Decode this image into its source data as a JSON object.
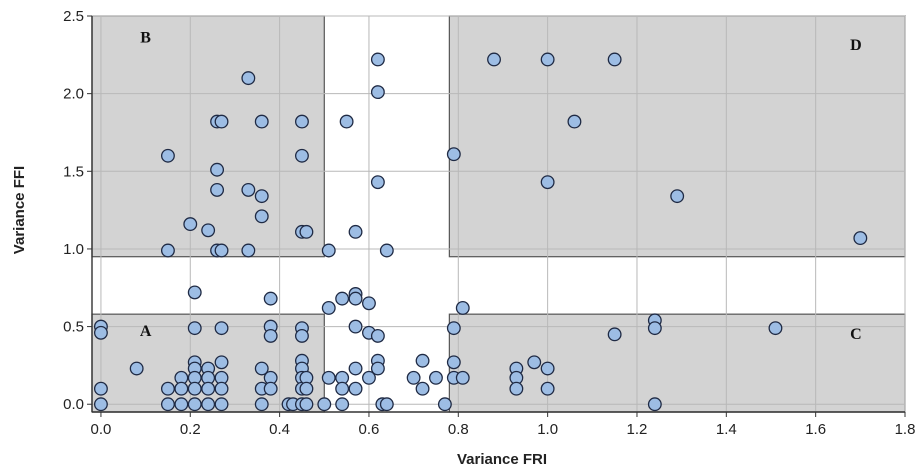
{
  "chart_data": {
    "type": "scatter",
    "xlabel": "Variance FRI",
    "ylabel": "Variance FFI",
    "xlim": [
      -0.02,
      1.8
    ],
    "ylim": [
      -0.05,
      2.5
    ],
    "xticks": [
      "0.0",
      "0.2",
      "0.4",
      "0.6",
      "0.8",
      "1.0",
      "1.2",
      "1.4",
      "1.6",
      "1.8"
    ],
    "yticks": [
      "0.0",
      "0.5",
      "1.0",
      "1.5",
      "2.0",
      "2.5"
    ],
    "grid": true,
    "colors": {
      "point_fill": "#9dbde4",
      "point_stroke": "#1f2a44",
      "region_fill": "#d3d3d3",
      "region_stroke": "#555555"
    },
    "regions": [
      {
        "label": "A",
        "x_range": [
          -0.02,
          0.5
        ],
        "y_range": [
          -0.05,
          0.58
        ],
        "label_at": [
          0.1,
          0.44
        ]
      },
      {
        "label": "B",
        "x_range": [
          -0.02,
          0.5
        ],
        "y_range": [
          0.95,
          2.5
        ],
        "label_at": [
          0.1,
          2.33
        ]
      },
      {
        "label": "C",
        "x_range": [
          0.78,
          1.8
        ],
        "y_range": [
          -0.05,
          0.58
        ],
        "label_at": [
          1.69,
          0.42
        ]
      },
      {
        "label": "D",
        "x_range": [
          0.78,
          1.8
        ],
        "y_range": [
          0.95,
          2.5
        ],
        "label_at": [
          1.69,
          2.28
        ]
      }
    ],
    "points": [
      [
        0.0,
        0.5
      ],
      [
        0.0,
        0.46
      ],
      [
        0.0,
        0.1
      ],
      [
        0.0,
        0.0
      ],
      [
        0.08,
        0.23
      ],
      [
        0.15,
        1.6
      ],
      [
        0.15,
        0.99
      ],
      [
        0.15,
        0.1
      ],
      [
        0.15,
        0.0
      ],
      [
        0.18,
        0.17
      ],
      [
        0.18,
        0.1
      ],
      [
        0.18,
        0.0
      ],
      [
        0.21,
        0.72
      ],
      [
        0.21,
        0.49
      ],
      [
        0.21,
        0.27
      ],
      [
        0.21,
        0.23
      ],
      [
        0.21,
        0.17
      ],
      [
        0.21,
        0.1
      ],
      [
        0.21,
        0.0
      ],
      [
        0.2,
        1.16
      ],
      [
        0.24,
        1.12
      ],
      [
        0.24,
        0.23
      ],
      [
        0.24,
        0.17
      ],
      [
        0.24,
        0.1
      ],
      [
        0.24,
        0.0
      ],
      [
        0.26,
        1.82
      ],
      [
        0.27,
        1.82
      ],
      [
        0.26,
        1.51
      ],
      [
        0.26,
        1.38
      ],
      [
        0.26,
        0.99
      ],
      [
        0.27,
        0.99
      ],
      [
        0.27,
        0.49
      ],
      [
        0.27,
        0.27
      ],
      [
        0.27,
        0.17
      ],
      [
        0.27,
        0.1
      ],
      [
        0.27,
        0.0
      ],
      [
        0.33,
        2.1
      ],
      [
        0.33,
        1.38
      ],
      [
        0.33,
        0.99
      ],
      [
        0.36,
        1.82
      ],
      [
        0.36,
        1.34
      ],
      [
        0.36,
        1.21
      ],
      [
        0.36,
        0.23
      ],
      [
        0.36,
        0.1
      ],
      [
        0.36,
        0.0
      ],
      [
        0.38,
        0.68
      ],
      [
        0.38,
        0.5
      ],
      [
        0.38,
        0.44
      ],
      [
        0.38,
        0.17
      ],
      [
        0.38,
        0.1
      ],
      [
        0.42,
        0.0
      ],
      [
        0.43,
        0.0
      ],
      [
        0.45,
        1.82
      ],
      [
        0.45,
        1.6
      ],
      [
        0.45,
        1.11
      ],
      [
        0.46,
        1.11
      ],
      [
        0.45,
        0.49
      ],
      [
        0.45,
        0.44
      ],
      [
        0.45,
        0.28
      ],
      [
        0.45,
        0.23
      ],
      [
        0.45,
        0.17
      ],
      [
        0.45,
        0.1
      ],
      [
        0.45,
        0.0
      ],
      [
        0.46,
        0.17
      ],
      [
        0.46,
        0.1
      ],
      [
        0.46,
        0.0
      ],
      [
        0.5,
        0.0
      ],
      [
        0.51,
        0.99
      ],
      [
        0.51,
        0.62
      ],
      [
        0.51,
        0.17
      ],
      [
        0.54,
        0.68
      ],
      [
        0.55,
        1.82
      ],
      [
        0.54,
        0.17
      ],
      [
        0.54,
        0.1
      ],
      [
        0.54,
        0.0
      ],
      [
        0.57,
        0.71
      ],
      [
        0.57,
        0.68
      ],
      [
        0.57,
        1.11
      ],
      [
        0.57,
        0.5
      ],
      [
        0.57,
        0.23
      ],
      [
        0.57,
        0.1
      ],
      [
        0.6,
        0.65
      ],
      [
        0.6,
        0.46
      ],
      [
        0.6,
        0.17
      ],
      [
        0.62,
        2.22
      ],
      [
        0.62,
        2.01
      ],
      [
        0.62,
        1.43
      ],
      [
        0.62,
        0.44
      ],
      [
        0.62,
        0.28
      ],
      [
        0.62,
        0.23
      ],
      [
        0.63,
        0.0
      ],
      [
        0.64,
        0.0
      ],
      [
        0.64,
        0.99
      ],
      [
        0.7,
        0.17
      ],
      [
        0.72,
        0.28
      ],
      [
        0.72,
        0.1
      ],
      [
        0.75,
        0.17
      ],
      [
        0.77,
        0.0
      ],
      [
        0.79,
        1.61
      ],
      [
        0.79,
        0.49
      ],
      [
        0.79,
        0.27
      ],
      [
        0.79,
        0.17
      ],
      [
        0.81,
        0.17
      ],
      [
        0.81,
        0.62
      ],
      [
        0.88,
        2.22
      ],
      [
        0.93,
        0.23
      ],
      [
        0.93,
        0.17
      ],
      [
        0.93,
        0.1
      ],
      [
        0.97,
        0.27
      ],
      [
        1.0,
        2.22
      ],
      [
        1.0,
        1.43
      ],
      [
        1.0,
        0.23
      ],
      [
        1.0,
        0.1
      ],
      [
        1.06,
        1.82
      ],
      [
        1.15,
        2.22
      ],
      [
        1.15,
        0.45
      ],
      [
        1.24,
        0.54
      ],
      [
        1.24,
        0.49
      ],
      [
        1.24,
        0.0
      ],
      [
        1.29,
        1.34
      ],
      [
        1.51,
        0.49
      ],
      [
        1.7,
        1.07
      ]
    ]
  }
}
